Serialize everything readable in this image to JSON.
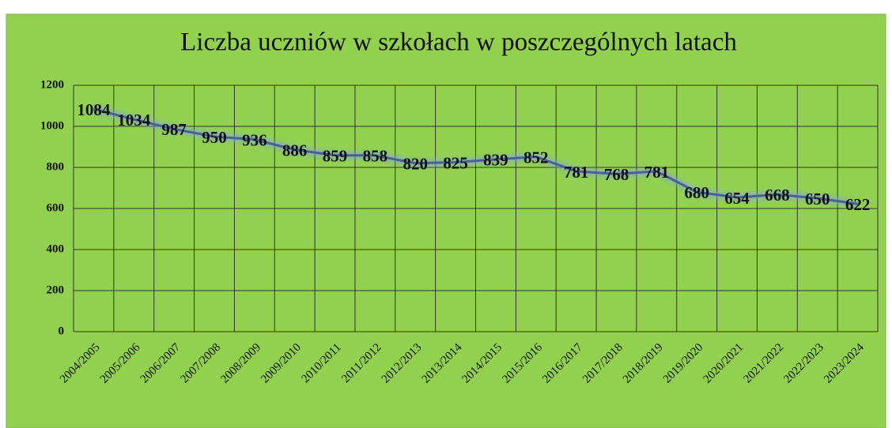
{
  "chart_data": {
    "type": "line",
    "title": "Liczba uczniów w szkołach w poszczególnych latach",
    "categories": [
      "2004/2005",
      "2005/2006",
      "2006/2007",
      "2007/2008",
      "2008/2009",
      "2009/2010",
      "2010/2011",
      "2011/2012",
      "2012/2013",
      "2013/2014",
      "2014/2015",
      "2015/2016",
      "2016/2017",
      "2017/2018",
      "2018/2019",
      "2019/2020",
      "2020/2021",
      "2021/2022",
      "2022/2023",
      "2023/2024"
    ],
    "values": [
      1084,
      1034,
      987,
      950,
      936,
      886,
      859,
      858,
      820,
      825,
      839,
      852,
      781,
      768,
      781,
      680,
      654,
      668,
      650,
      622
    ],
    "color": "#4a5f9a",
    "ylim": [
      0,
      1200
    ],
    "yticks": [
      0,
      200,
      400,
      600,
      800,
      1000,
      1200
    ],
    "grid": true
  }
}
